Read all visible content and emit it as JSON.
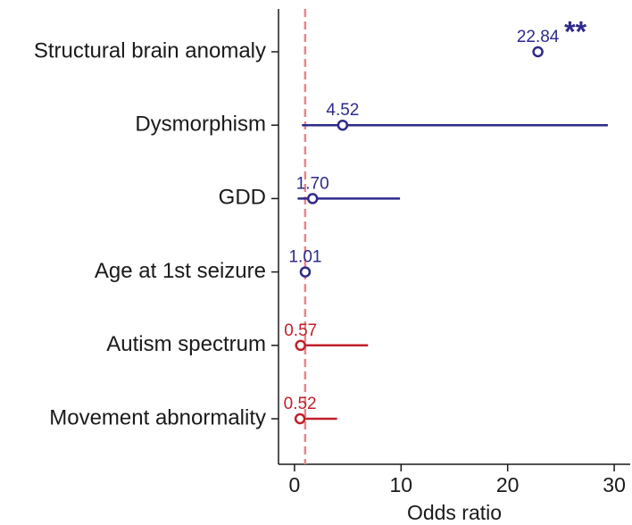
{
  "chart_data": {
    "type": "forest",
    "categories": [
      "Structural brain anomaly",
      "Dysmorphism",
      "GDD",
      "Age at 1st seizure",
      "Autism spectrum",
      "Movement abnormality"
    ],
    "values": [
      22.84,
      4.52,
      1.7,
      1.01,
      0.57,
      0.52
    ],
    "value_labels": [
      "22.84",
      "4.52",
      "1.70",
      "1.01",
      "0.57",
      "0.52"
    ],
    "ci_lower": [
      null,
      0.7,
      0.3,
      0.9,
      0.05,
      0.05
    ],
    "ci_upper": [
      null,
      29.4,
      9.9,
      1.1,
      6.9,
      4.0
    ],
    "colors": [
      "#2e2a8a",
      "#2e2a8a",
      "#2e2a8a",
      "#2e2a8a",
      "#c0202a",
      "#c0202a"
    ],
    "xlim": [
      -1.5,
      31.5
    ],
    "xticks": [
      0,
      10,
      20,
      30
    ],
    "xlabel": "Odds ratio",
    "reference_line": 1,
    "reference_color": "#e8868a",
    "annotations": [
      {
        "text": "**",
        "category": 0,
        "color": "#2e2a8a"
      }
    ]
  }
}
